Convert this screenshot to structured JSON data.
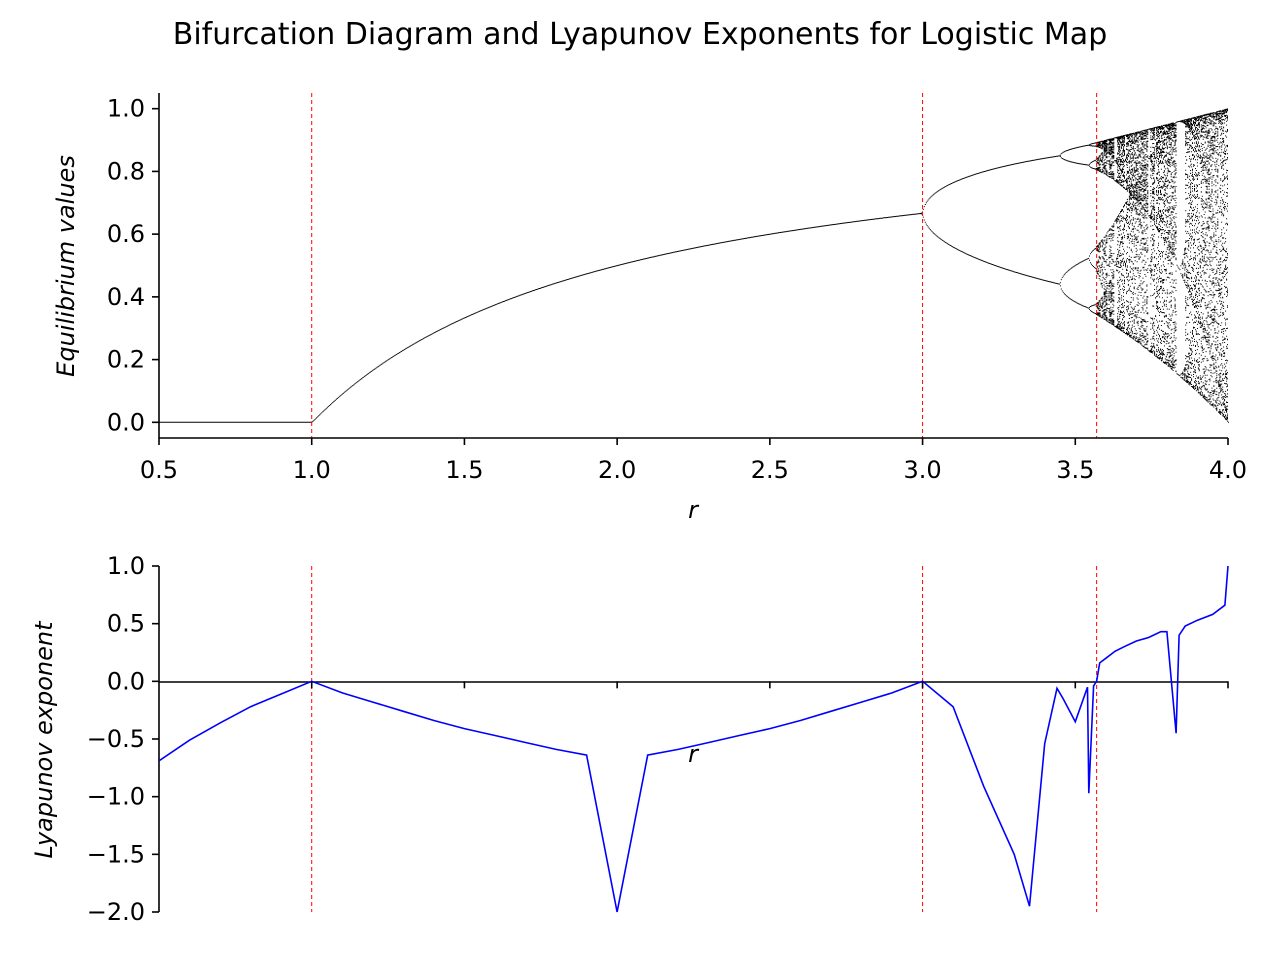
{
  "title": "Bifurcation Diagram and Lyapunov Exponents for Logistic Map",
  "chart_data": [
    {
      "type": "scatter",
      "xlabel": "r",
      "ylabel": "Equilibrium values",
      "xlim": [
        0.5,
        4.0
      ],
      "ylim": [
        -0.05,
        1.05
      ],
      "xticks": [
        "0.5",
        "1.0",
        "1.5",
        "2.0",
        "2.5",
        "3.0",
        "3.5",
        "4.0"
      ],
      "xtick_values": [
        0.5,
        1.0,
        1.5,
        2.0,
        2.5,
        3.0,
        3.5,
        4.0
      ],
      "yticks": [
        "0.0",
        "0.2",
        "0.4",
        "0.6",
        "0.8",
        "1.0"
      ],
      "ytick_values": [
        0.0,
        0.2,
        0.4,
        0.6,
        0.8,
        1.0
      ],
      "marker_color": "#000000",
      "vlines": [
        1.0,
        3.0,
        3.5699
      ],
      "vline_color": "#ff0000",
      "vline_style": "dashed",
      "grid": false
    },
    {
      "type": "line",
      "xlabel": "r",
      "ylabel": "Lyapunov exponent",
      "xlim": [
        0.5,
        4.0
      ],
      "ylim": [
        -2.0,
        1.0
      ],
      "yticks": [
        "1.0",
        "0.5",
        "0.0",
        "−0.5",
        "−1.0",
        "−1.5",
        "−2.0"
      ],
      "ytick_values": [
        1.0,
        0.5,
        0.0,
        -0.5,
        -1.0,
        -1.5,
        -2.0
      ],
      "xtick_values": [
        1.0,
        1.5,
        2.0,
        2.5,
        3.0,
        3.5,
        4.0
      ],
      "line_color": "#0000ff",
      "series": [
        {
          "x": [
            0.5,
            0.6,
            0.7,
            0.8,
            0.9,
            1.0,
            1.1,
            1.2,
            1.3,
            1.4,
            1.5,
            1.6,
            1.7,
            1.8,
            1.9,
            2.0,
            2.1,
            2.2,
            2.3,
            2.4,
            2.5,
            2.6,
            2.7,
            2.8,
            2.9,
            3.0,
            3.1,
            3.2,
            3.3,
            3.35,
            3.4,
            3.44,
            3.46,
            3.5,
            3.54,
            3.5441,
            3.56,
            3.5699,
            3.58,
            3.6,
            3.63,
            3.66,
            3.7,
            3.74,
            3.78,
            3.8,
            3.83,
            3.84,
            3.86,
            3.9,
            3.95,
            3.99,
            4.0
          ],
          "y": [
            -0.69,
            -0.51,
            -0.36,
            -0.22,
            -0.11,
            0.0,
            -0.1,
            -0.18,
            -0.26,
            -0.34,
            -0.41,
            -0.47,
            -0.53,
            -0.59,
            -0.64,
            -2.0,
            -0.64,
            -0.59,
            -0.53,
            -0.47,
            -0.41,
            -0.34,
            -0.26,
            -0.18,
            -0.1,
            0.0,
            -0.22,
            -0.91,
            -1.5,
            -1.95,
            -0.54,
            -0.06,
            -0.15,
            -0.35,
            -0.05,
            -0.97,
            -0.04,
            0.0,
            0.16,
            0.2,
            0.26,
            0.3,
            0.35,
            0.38,
            0.43,
            0.43,
            -0.45,
            0.4,
            0.48,
            0.53,
            0.58,
            0.66,
            1.0
          ]
        }
      ],
      "vlines": [
        1.0,
        3.0,
        3.5699
      ],
      "vline_color": "#ff0000",
      "vline_style": "dashed",
      "grid": false
    }
  ]
}
